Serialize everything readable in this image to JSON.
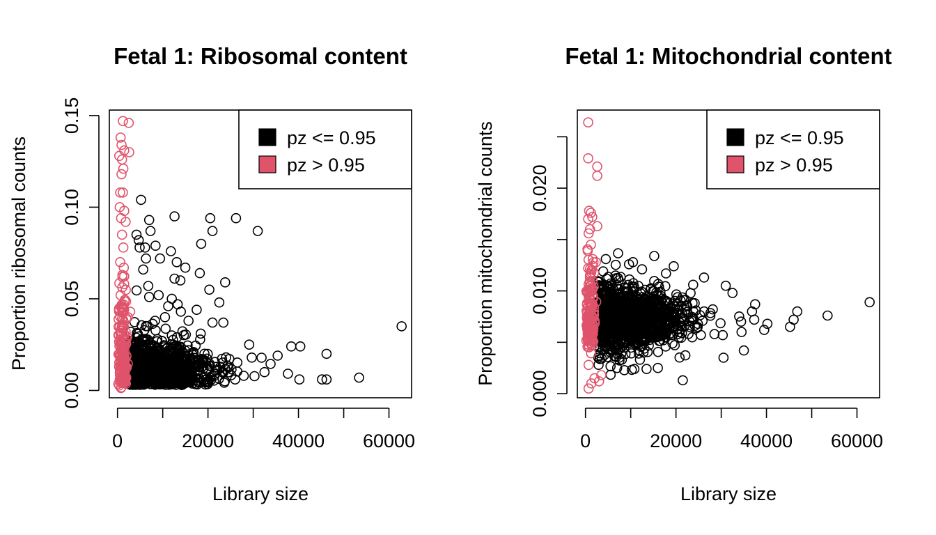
{
  "colors": {
    "black": "#000000",
    "red": "#DF536B",
    "background": "#FFFFFF"
  },
  "chart_data": [
    {
      "type": "scatter",
      "title": "Fetal 1: Ribosomal content",
      "xlabel": "Library size",
      "ylabel": "Proportion ribosomal counts",
      "xlim": [
        -1800,
        65000
      ],
      "ylim": [
        -0.004,
        0.153
      ],
      "xticks": [
        0,
        10000,
        20000,
        30000,
        40000,
        50000,
        60000
      ],
      "xtick_labels": [
        "0",
        "",
        "20000",
        "",
        "40000",
        "",
        "60000"
      ],
      "yticks": [
        0,
        0.05,
        0.1,
        0.15
      ],
      "ytick_labels": [
        "0.00",
        "0.05",
        "0.10",
        "0.15"
      ],
      "legend": {
        "position": "top-right",
        "entries": [
          {
            "label": "pz <= 0.95",
            "color": "#000000"
          },
          {
            "label": "pz > 0.95",
            "color": "#DF536B"
          }
        ]
      },
      "series": [
        {
          "name": "pz <= 0.95",
          "color": "#000000",
          "points": [
            [
              5200,
              0.104
            ],
            [
              7000,
              0.093
            ],
            [
              12600,
              0.095
            ],
            [
              20500,
              0.094
            ],
            [
              26200,
              0.094
            ],
            [
              21000,
              0.087
            ],
            [
              31000,
              0.087
            ],
            [
              4200,
              0.085
            ],
            [
              4700,
              0.082
            ],
            [
              7300,
              0.087
            ],
            [
              8400,
              0.079
            ],
            [
              4900,
              0.078
            ],
            [
              6100,
              0.078
            ],
            [
              11800,
              0.076
            ],
            [
              18500,
              0.08
            ],
            [
              6300,
              0.072
            ],
            [
              9400,
              0.072
            ],
            [
              13100,
              0.07
            ],
            [
              15000,
              0.067
            ],
            [
              5700,
              0.066
            ],
            [
              18200,
              0.064
            ],
            [
              12600,
              0.061
            ],
            [
              13900,
              0.06
            ],
            [
              6800,
              0.057
            ],
            [
              23800,
              0.059
            ],
            [
              20300,
              0.055
            ],
            [
              9100,
              0.052
            ],
            [
              7000,
              0.051
            ],
            [
              12000,
              0.05
            ],
            [
              13300,
              0.047
            ],
            [
              17500,
              0.044
            ],
            [
              22500,
              0.048
            ],
            [
              21000,
              0.037
            ],
            [
              23400,
              0.037
            ],
            [
              14000,
              0.043
            ],
            [
              11200,
              0.046
            ],
            [
              8300,
              0.038
            ],
            [
              10500,
              0.04
            ],
            [
              6600,
              0.035
            ],
            [
              15700,
              0.038
            ],
            [
              18400,
              0.031
            ],
            [
              29100,
              0.025
            ],
            [
              35400,
              0.019
            ],
            [
              38400,
              0.024
            ],
            [
              40400,
              0.024
            ],
            [
              46200,
              0.02
            ],
            [
              62800,
              0.035
            ],
            [
              53400,
              0.007
            ],
            [
              45200,
              0.006
            ],
            [
              46200,
              0.006
            ],
            [
              40200,
              0.006
            ],
            [
              32500,
              0.01
            ],
            [
              26000,
              0.006
            ],
            [
              19000,
              0.012
            ],
            [
              24000,
              0.018
            ],
            [
              12000,
              0.03
            ],
            [
              8800,
              0.028
            ]
          ],
          "cluster": {
            "x_center": 9000,
            "x_spread": 7500,
            "y_center": 0.012,
            "y_spread": 0.008,
            "count": 900
          }
        },
        {
          "name": "pz > 0.95",
          "color": "#DF536B",
          "points": [
            [
              1200,
              0.147
            ],
            [
              2500,
              0.146
            ],
            [
              700,
              0.138
            ],
            [
              900,
              0.134
            ],
            [
              1500,
              0.131
            ],
            [
              2600,
              0.13
            ],
            [
              400,
              0.128
            ],
            [
              1000,
              0.126
            ],
            [
              1300,
              0.121
            ],
            [
              900,
              0.118
            ],
            [
              600,
              0.108
            ],
            [
              1200,
              0.108
            ],
            [
              500,
              0.1
            ],
            [
              1500,
              0.098
            ],
            [
              800,
              0.094
            ],
            [
              1800,
              0.092
            ],
            [
              1000,
              0.085
            ],
            [
              1300,
              0.078
            ],
            [
              600,
              0.07
            ],
            [
              1100,
              0.063
            ],
            [
              1500,
              0.058
            ],
            [
              700,
              0.052
            ],
            [
              1000,
              0.045
            ],
            [
              2300,
              0.04
            ],
            [
              2800,
              0.043
            ]
          ],
          "cluster": {
            "x_center": 1000,
            "x_spread": 500,
            "y_center": 0.02,
            "y_spread": 0.02,
            "count": 150
          }
        }
      ]
    },
    {
      "type": "scatter",
      "title": "Fetal 1: Mitochondrial content",
      "xlabel": "Library size",
      "ylabel": "Proportion mitochondrial counts",
      "xlim": [
        -1800,
        65000
      ],
      "ylim": [
        -0.0004,
        0.0276
      ],
      "xticks": [
        0,
        10000,
        20000,
        30000,
        40000,
        50000,
        60000
      ],
      "xtick_labels": [
        "0",
        "",
        "20000",
        "",
        "40000",
        "",
        "60000"
      ],
      "yticks": [
        0,
        0.005,
        0.01,
        0.015,
        0.02,
        0.025
      ],
      "ytick_labels": [
        "0.000",
        "",
        "0.010",
        "",
        "0.020",
        ""
      ],
      "legend": {
        "position": "top-right",
        "entries": [
          {
            "label": "pz <= 0.95",
            "color": "#000000"
          },
          {
            "label": "pz > 0.95",
            "color": "#DF536B"
          }
        ]
      },
      "series": [
        {
          "name": "pz <= 0.95",
          "color": "#000000",
          "points": [
            [
              15200,
              0.0134
            ],
            [
              4500,
              0.0131
            ],
            [
              19500,
              0.0124
            ],
            [
              10500,
              0.0128
            ],
            [
              12500,
              0.0121
            ],
            [
              17800,
              0.0117
            ],
            [
              26200,
              0.0113
            ],
            [
              31000,
              0.0105
            ],
            [
              23800,
              0.0106
            ],
            [
              32500,
              0.0098
            ],
            [
              37500,
              0.0087
            ],
            [
              36800,
              0.008
            ],
            [
              45200,
              0.0065
            ],
            [
              46000,
              0.0072
            ],
            [
              46800,
              0.008
            ],
            [
              53500,
              0.0076
            ],
            [
              62800,
              0.0089
            ],
            [
              40200,
              0.0068
            ],
            [
              39500,
              0.0062
            ],
            [
              35000,
              0.0042
            ],
            [
              30500,
              0.0035
            ],
            [
              21500,
              0.0013
            ],
            [
              16000,
              0.0025
            ],
            [
              10800,
              0.0024
            ],
            [
              7000,
              0.0025
            ],
            [
              13500,
              0.0024
            ],
            [
              34500,
              0.006
            ],
            [
              28500,
              0.0058
            ],
            [
              25500,
              0.0057
            ],
            [
              37300,
              0.0072
            ]
          ],
          "cluster": {
            "x_center": 10000,
            "x_spread": 7000,
            "y_center": 0.0073,
            "y_spread": 0.0016,
            "count": 1100
          }
        },
        {
          "name": "pz > 0.95",
          "color": "#DF536B",
          "points": [
            [
              600,
              0.0264
            ],
            [
              600,
              0.0229
            ],
            [
              2600,
              0.0221
            ],
            [
              2600,
              0.0212
            ],
            [
              800,
              0.0178
            ],
            [
              1200,
              0.0176
            ],
            [
              1500,
              0.0172
            ],
            [
              600,
              0.017
            ],
            [
              2600,
              0.0163
            ],
            [
              1000,
              0.016
            ],
            [
              700,
              0.0156
            ],
            [
              1200,
              0.0145
            ],
            [
              500,
              0.0139
            ],
            [
              1600,
              0.0131
            ],
            [
              2300,
              0.0128
            ],
            [
              600,
              0.0122
            ],
            [
              1000,
              0.0115
            ],
            [
              700,
              0.0005
            ],
            [
              1300,
              0.001
            ],
            [
              2000,
              0.0015
            ],
            [
              3000,
              0.0012
            ],
            [
              700,
              0.0028
            ],
            [
              3500,
              0.0018
            ]
          ],
          "cluster": {
            "x_center": 1000,
            "x_spread": 500,
            "y_center": 0.0072,
            "y_spread": 0.0025,
            "count": 160
          }
        }
      ]
    }
  ]
}
